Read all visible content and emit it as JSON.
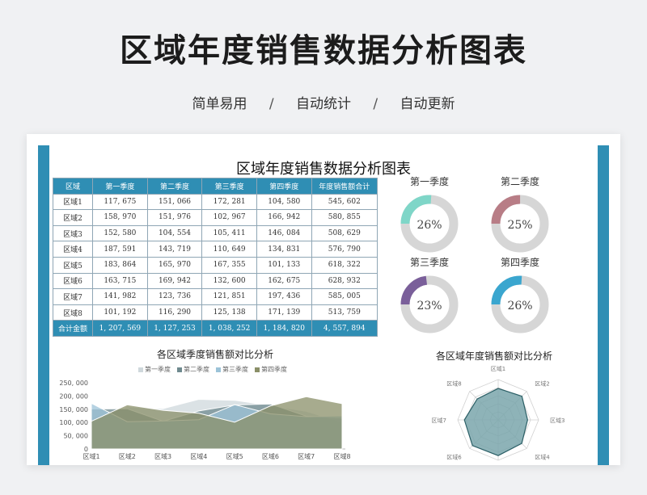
{
  "hero": {
    "title": "区域年度销售数据分析图表",
    "taglines": [
      "简单易用",
      "自动统计",
      "自动更新"
    ],
    "separator": "/"
  },
  "sheet": {
    "title": "区域年度销售数据分析图表",
    "accent_color": "#2f8eb4"
  },
  "table": {
    "headers": [
      "区域",
      "第一季度",
      "第二季度",
      "第三季度",
      "第四季度",
      "年度销售额合计"
    ],
    "rows": [
      [
        "区域1",
        "117, 675",
        "151, 066",
        "172, 281",
        "104, 580",
        "545, 602"
      ],
      [
        "区域2",
        "158, 970",
        "151, 976",
        "102, 967",
        "166, 942",
        "580, 855"
      ],
      [
        "区域3",
        "152, 580",
        "104, 554",
        "105, 411",
        "146, 084",
        "508, 629"
      ],
      [
        "区域4",
        "187, 591",
        "143, 719",
        "110, 649",
        "134, 831",
        "576, 790"
      ],
      [
        "区域5",
        "183, 864",
        "165, 970",
        "167, 355",
        "101, 133",
        "618, 322"
      ],
      [
        "区域6",
        "163, 715",
        "169, 942",
        "132, 600",
        "162, 675",
        "628, 932"
      ],
      [
        "区域7",
        "141, 982",
        "123, 736",
        "121, 851",
        "197, 436",
        "585, 005"
      ],
      [
        "区域8",
        "101, 192",
        "116, 290",
        "125, 138",
        "171, 139",
        "513, 759"
      ]
    ],
    "footer": [
      "合计金额",
      "1, 207, 569",
      "1, 127, 253",
      "1, 038, 252",
      "1, 184, 820",
      "4, 557, 894"
    ]
  },
  "chart_data": [
    {
      "type": "pie",
      "subtype": "donut-group",
      "items": [
        {
          "label": "第一季度",
          "percent_text": "26%",
          "value": 26,
          "color": "#7fd6c8"
        },
        {
          "label": "第二季度",
          "percent_text": "25%",
          "value": 25,
          "color": "#b87d86"
        },
        {
          "label": "第三季度",
          "percent_text": "23%",
          "value": 23,
          "color": "#7a5f9a"
        },
        {
          "label": "第四季度",
          "percent_text": "26%",
          "value": 26,
          "color": "#3aa6cf"
        }
      ],
      "track_color": "#d6d6d6"
    },
    {
      "type": "area",
      "title": "各区域季度销售额对比分析",
      "categories": [
        "区域1",
        "区域2",
        "区域3",
        "区域4",
        "区域5",
        "区域6",
        "区域7",
        "区域8"
      ],
      "ylim": [
        0,
        250000
      ],
      "yticks": [
        0,
        50000,
        100000,
        150000,
        200000,
        250000
      ],
      "ytick_labels": [
        "0",
        "50, 000",
        "100, 000",
        "150, 000",
        "200, 000",
        "250, 000"
      ],
      "legend_position": "top",
      "series": [
        {
          "name": "第一季度",
          "values": [
            117675,
            158970,
            152580,
            187591,
            183864,
            163715,
            141982,
            101192
          ],
          "color": "#cfd8dc"
        },
        {
          "name": "第二季度",
          "values": [
            151066,
            151976,
            104554,
            143719,
            165970,
            169942,
            123736,
            116290
          ],
          "color": "#6f8a8f"
        },
        {
          "name": "第三季度",
          "values": [
            172281,
            102967,
            105411,
            110649,
            167355,
            132600,
            121851,
            125138
          ],
          "color": "#9cc3d8"
        },
        {
          "name": "第四季度",
          "values": [
            104580,
            166942,
            146084,
            134831,
            101133,
            162675,
            197436,
            171139
          ],
          "color": "#8a8f68"
        }
      ]
    },
    {
      "type": "radar",
      "title": "各区域年度销售额对比分析",
      "categories": [
        "区域1",
        "区域2",
        "区域3",
        "区域4",
        "区域5",
        "区域6",
        "区域7",
        "区域8"
      ],
      "values": [
        545602,
        580855,
        508629,
        576790,
        618322,
        628932,
        585005,
        513759
      ],
      "rmax": 700000,
      "fill_color": "#7aa6ab",
      "line_color": "#2b5f66"
    }
  ]
}
